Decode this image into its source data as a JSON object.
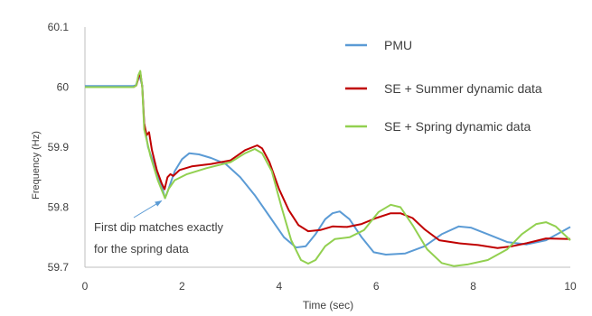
{
  "chart_data": {
    "type": "line",
    "title": "",
    "xlabel": "Time (sec)",
    "ylabel": "Frequency (Hz)",
    "xlim": [
      0,
      10
    ],
    "ylim": [
      59.7,
      60.1
    ],
    "x_ticks": [
      "0",
      "2",
      "4",
      "6",
      "8",
      "10"
    ],
    "y_ticks": [
      "60.1",
      "60",
      "59.9",
      "59.8",
      "59.7"
    ],
    "grid": false,
    "legend_position": "right",
    "annotation": {
      "lines": [
        "First dip matches exactly",
        "for the spring data"
      ],
      "points_to": [
        1.65,
        59.815
      ]
    },
    "series": [
      {
        "name": "PMU",
        "color": "#5b9bd5",
        "points": [
          [
            0,
            60.002
          ],
          [
            1.0,
            60.002
          ],
          [
            1.05,
            60.003
          ],
          [
            1.1,
            60.015
          ],
          [
            1.12,
            60.02
          ],
          [
            1.18,
            60.003
          ],
          [
            1.22,
            59.94
          ],
          [
            1.3,
            59.9
          ],
          [
            1.45,
            59.865
          ],
          [
            1.6,
            59.83
          ],
          [
            1.65,
            59.815
          ],
          [
            1.72,
            59.83
          ],
          [
            1.85,
            59.86
          ],
          [
            2.0,
            59.88
          ],
          [
            2.15,
            59.89
          ],
          [
            2.35,
            59.888
          ],
          [
            2.6,
            59.882
          ],
          [
            2.9,
            59.872
          ],
          [
            3.2,
            59.85
          ],
          [
            3.5,
            59.82
          ],
          [
            3.8,
            59.785
          ],
          [
            4.1,
            59.75
          ],
          [
            4.35,
            59.733
          ],
          [
            4.55,
            59.735
          ],
          [
            4.75,
            59.755
          ],
          [
            4.95,
            59.78
          ],
          [
            5.1,
            59.79
          ],
          [
            5.25,
            59.793
          ],
          [
            5.45,
            59.78
          ],
          [
            5.7,
            59.75
          ],
          [
            5.95,
            59.725
          ],
          [
            6.2,
            59.721
          ],
          [
            6.6,
            59.723
          ],
          [
            7.0,
            59.735
          ],
          [
            7.35,
            59.755
          ],
          [
            7.7,
            59.768
          ],
          [
            7.95,
            59.766
          ],
          [
            8.3,
            59.755
          ],
          [
            8.7,
            59.742
          ],
          [
            9.1,
            59.738
          ],
          [
            9.5,
            59.745
          ],
          [
            10.0,
            59.767
          ]
        ]
      },
      {
        "name": "SE + Summer dynamic data",
        "color": "#c00000",
        "points": [
          [
            0,
            60.0
          ],
          [
            1.0,
            60.0
          ],
          [
            1.06,
            60.003
          ],
          [
            1.1,
            60.015
          ],
          [
            1.14,
            60.025
          ],
          [
            1.18,
            60.0
          ],
          [
            1.22,
            59.94
          ],
          [
            1.27,
            59.92
          ],
          [
            1.32,
            59.925
          ],
          [
            1.38,
            59.895
          ],
          [
            1.48,
            59.862
          ],
          [
            1.58,
            59.84
          ],
          [
            1.64,
            59.83
          ],
          [
            1.7,
            59.85
          ],
          [
            1.76,
            59.855
          ],
          [
            1.82,
            59.852
          ],
          [
            1.95,
            59.862
          ],
          [
            2.2,
            59.868
          ],
          [
            2.6,
            59.872
          ],
          [
            3.0,
            59.878
          ],
          [
            3.3,
            59.895
          ],
          [
            3.55,
            59.903
          ],
          [
            3.65,
            59.898
          ],
          [
            3.8,
            59.875
          ],
          [
            4.0,
            59.83
          ],
          [
            4.2,
            59.795
          ],
          [
            4.4,
            59.77
          ],
          [
            4.6,
            59.76
          ],
          [
            4.85,
            59.762
          ],
          [
            5.1,
            59.768
          ],
          [
            5.4,
            59.767
          ],
          [
            5.7,
            59.772
          ],
          [
            6.0,
            59.782
          ],
          [
            6.3,
            59.79
          ],
          [
            6.5,
            59.79
          ],
          [
            6.75,
            59.782
          ],
          [
            7.0,
            59.763
          ],
          [
            7.3,
            59.745
          ],
          [
            7.7,
            59.74
          ],
          [
            8.1,
            59.737
          ],
          [
            8.5,
            59.732
          ],
          [
            8.8,
            59.735
          ],
          [
            9.1,
            59.74
          ],
          [
            9.5,
            59.748
          ],
          [
            10.0,
            59.747
          ]
        ]
      },
      {
        "name": "SE + Spring dynamic data",
        "color": "#92d050",
        "points": [
          [
            0,
            60.0
          ],
          [
            1.0,
            60.0
          ],
          [
            1.06,
            60.003
          ],
          [
            1.1,
            60.02
          ],
          [
            1.14,
            60.027
          ],
          [
            1.18,
            60.0
          ],
          [
            1.22,
            59.93
          ],
          [
            1.35,
            59.885
          ],
          [
            1.5,
            59.845
          ],
          [
            1.6,
            59.825
          ],
          [
            1.65,
            59.815
          ],
          [
            1.72,
            59.83
          ],
          [
            1.85,
            59.845
          ],
          [
            2.1,
            59.855
          ],
          [
            2.5,
            59.865
          ],
          [
            3.0,
            59.875
          ],
          [
            3.3,
            59.89
          ],
          [
            3.5,
            59.897
          ],
          [
            3.65,
            59.89
          ],
          [
            3.85,
            59.86
          ],
          [
            4.05,
            59.8
          ],
          [
            4.25,
            59.745
          ],
          [
            4.45,
            59.712
          ],
          [
            4.6,
            59.706
          ],
          [
            4.75,
            59.712
          ],
          [
            4.95,
            59.735
          ],
          [
            5.15,
            59.747
          ],
          [
            5.45,
            59.75
          ],
          [
            5.75,
            59.762
          ],
          [
            6.05,
            59.792
          ],
          [
            6.3,
            59.804
          ],
          [
            6.5,
            59.8
          ],
          [
            6.75,
            59.77
          ],
          [
            7.05,
            59.73
          ],
          [
            7.35,
            59.707
          ],
          [
            7.6,
            59.702
          ],
          [
            7.9,
            59.705
          ],
          [
            8.3,
            59.712
          ],
          [
            8.7,
            59.73
          ],
          [
            9.0,
            59.755
          ],
          [
            9.3,
            59.772
          ],
          [
            9.5,
            59.775
          ],
          [
            9.7,
            59.768
          ],
          [
            10.0,
            59.745
          ]
        ]
      }
    ]
  }
}
